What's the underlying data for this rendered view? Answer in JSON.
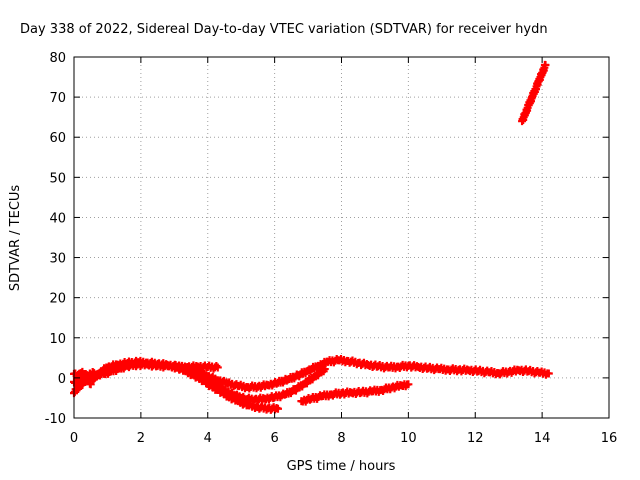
{
  "chart_data": {
    "type": "scatter",
    "title": "Day 338 of 2022, Sidereal Day-to-day VTEC variation (SDTVAR) for receiver hydn",
    "xlabel": "GPS time / hours",
    "ylabel": "SDTVAR / TECUs",
    "xlim": [
      0,
      16
    ],
    "ylim": [
      -10,
      80
    ],
    "xticks": [
      "0",
      "2",
      "4",
      "6",
      "8",
      "10",
      "12",
      "14",
      "16"
    ],
    "yticks": [
      "-10",
      "0",
      "10",
      "20",
      "30",
      "40",
      "50",
      "60",
      "70",
      "80"
    ],
    "grid": true,
    "marker_color": "#ff0000",
    "series": [
      {
        "points": [
          [
            0.0,
            -3.8
          ],
          [
            0.1,
            -2.6
          ],
          [
            0.2,
            -1.8
          ],
          [
            0.3,
            -1.0
          ],
          [
            0.4,
            -0.3
          ],
          [
            0.5,
            0.3
          ],
          [
            0.6,
            0.7
          ],
          [
            0.7,
            0.9
          ],
          [
            0.9,
            1.0
          ],
          [
            1.1,
            1.6
          ],
          [
            1.3,
            2.2
          ],
          [
            1.6,
            3.0
          ],
          [
            1.9,
            3.3
          ],
          [
            2.2,
            3.3
          ],
          [
            2.5,
            3.0
          ],
          [
            2.8,
            2.9
          ],
          [
            3.1,
            2.6
          ],
          [
            3.4,
            2.7
          ],
          [
            3.7,
            2.8
          ],
          [
            4.0,
            2.7
          ],
          [
            4.3,
            2.6
          ]
        ]
      },
      {
        "points": [
          [
            0.0,
            1.0
          ],
          [
            0.2,
            0.6
          ],
          [
            0.4,
            0.2
          ],
          [
            0.6,
            -0.2
          ],
          [
            0.8,
            1.5
          ],
          [
            1.0,
            2.6
          ],
          [
            1.3,
            3.3
          ],
          [
            1.6,
            3.7
          ],
          [
            1.9,
            3.9
          ],
          [
            2.2,
            3.8
          ],
          [
            2.5,
            3.5
          ],
          [
            2.8,
            3.2
          ],
          [
            3.1,
            2.8
          ],
          [
            3.4,
            2.2
          ],
          [
            3.7,
            1.4
          ],
          [
            4.0,
            0.4
          ],
          [
            4.3,
            -0.6
          ],
          [
            4.6,
            -1.4
          ],
          [
            4.9,
            -2.0
          ],
          [
            5.2,
            -2.3
          ],
          [
            5.5,
            -2.2
          ],
          [
            5.8,
            -1.8
          ],
          [
            6.1,
            -1.2
          ],
          [
            6.4,
            -0.4
          ],
          [
            6.7,
            0.6
          ],
          [
            7.0,
            1.8
          ],
          [
            7.3,
            3.0
          ],
          [
            7.6,
            4.0
          ],
          [
            7.9,
            4.4
          ],
          [
            8.2,
            4.2
          ],
          [
            8.5,
            3.7
          ],
          [
            8.8,
            3.2
          ],
          [
            9.1,
            2.9
          ],
          [
            9.4,
            2.6
          ],
          [
            9.7,
            2.8
          ],
          [
            10.0,
            3.0
          ],
          [
            10.3,
            2.7
          ],
          [
            10.6,
            2.4
          ],
          [
            10.9,
            2.2
          ],
          [
            11.2,
            2.1
          ],
          [
            11.5,
            2.0
          ],
          [
            11.8,
            1.9
          ],
          [
            12.1,
            1.7
          ],
          [
            12.4,
            1.4
          ],
          [
            12.7,
            1.2
          ],
          [
            13.0,
            1.5
          ],
          [
            13.3,
            1.9
          ],
          [
            13.6,
            1.7
          ],
          [
            13.9,
            1.3
          ],
          [
            14.2,
            1.1
          ]
        ]
      },
      {
        "points": [
          [
            3.0,
            3.0
          ],
          [
            3.3,
            1.8
          ],
          [
            3.6,
            0.6
          ],
          [
            3.9,
            -0.8
          ],
          [
            4.2,
            -2.0
          ],
          [
            4.5,
            -3.2
          ],
          [
            4.8,
            -4.3
          ],
          [
            5.1,
            -5.2
          ],
          [
            5.4,
            -5.4
          ],
          [
            5.7,
            -5.2
          ],
          [
            6.0,
            -4.8
          ],
          [
            6.3,
            -4.2
          ],
          [
            6.6,
            -3.0
          ],
          [
            6.9,
            -1.4
          ],
          [
            7.2,
            0.4
          ],
          [
            7.5,
            2.2
          ]
        ]
      },
      {
        "points": [
          [
            4.0,
            -1.5
          ],
          [
            4.3,
            -3.0
          ],
          [
            4.6,
            -4.5
          ],
          [
            4.9,
            -5.8
          ],
          [
            5.2,
            -6.8
          ],
          [
            5.5,
            -7.3
          ],
          [
            5.8,
            -7.6
          ],
          [
            6.1,
            -7.7
          ]
        ]
      },
      {
        "points": [
          [
            6.8,
            -5.8
          ],
          [
            7.1,
            -5.2
          ],
          [
            7.4,
            -4.6
          ],
          [
            7.7,
            -4.1
          ],
          [
            8.0,
            -3.8
          ],
          [
            8.3,
            -3.7
          ],
          [
            8.6,
            -3.6
          ],
          [
            8.9,
            -3.4
          ],
          [
            9.2,
            -3.0
          ],
          [
            9.5,
            -2.4
          ],
          [
            9.8,
            -1.9
          ],
          [
            10.0,
            -1.6
          ]
        ]
      },
      {
        "points": [
          [
            0.0,
            -1.0
          ],
          [
            0.15,
            -2.2
          ],
          [
            0.3,
            0.9
          ],
          [
            0.45,
            -0.5
          ],
          [
            0.6,
            1.2
          ],
          [
            0.1,
            0.0
          ],
          [
            0.25,
            1.5
          ],
          [
            0.5,
            -1.6
          ]
        ]
      },
      {
        "points": [
          [
            13.4,
            64.0
          ],
          [
            13.5,
            66.0
          ],
          [
            13.6,
            68.0
          ],
          [
            13.7,
            70.0
          ],
          [
            13.8,
            72.0
          ],
          [
            13.9,
            74.0
          ],
          [
            14.0,
            76.0
          ],
          [
            14.1,
            78.0
          ]
        ]
      }
    ]
  }
}
